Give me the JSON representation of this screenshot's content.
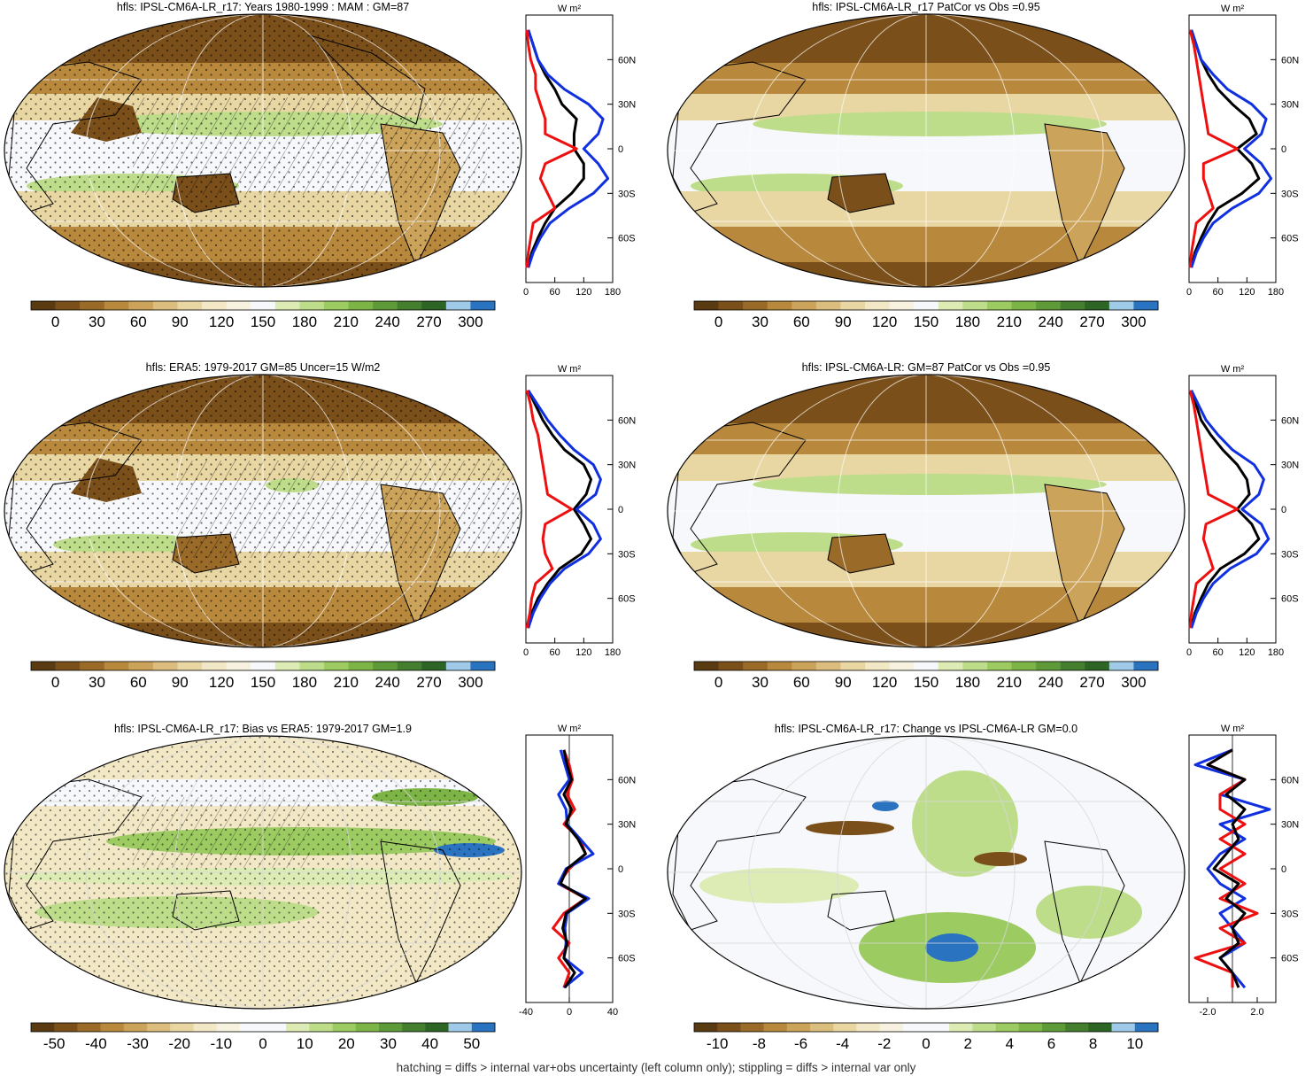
{
  "figure": {
    "footnote": "hatching = diffs > internal var+obs uncertainty (left column only); stippling = diffs > internal var only"
  },
  "colors": {
    "mean": [
      "#5a3a10",
      "#7a4f1a",
      "#9a6a28",
      "#b8883c",
      "#cca35a",
      "#dbbd7e",
      "#e8d6a3",
      "#f2e8c6",
      "#f7f2e0",
      "#f7f8fb",
      "#dcecb4",
      "#bedd8a",
      "#9ccb62",
      "#7db446",
      "#5e9a38",
      "#437f2e",
      "#2d6624",
      "#9fcbe8",
      "#2a73c0"
    ],
    "diff": [
      "#5a3a10",
      "#7a4f1a",
      "#9a6a28",
      "#b8883c",
      "#cca35a",
      "#dbbd7e",
      "#e8d6a3",
      "#f2e8c6",
      "#f7f2e0",
      "#f7f8fb",
      "#f7f8fb",
      "#dcecb4",
      "#bedd8a",
      "#9ccb62",
      "#7db446",
      "#5e9a38",
      "#437f2e",
      "#2d6624",
      "#9fcbe8",
      "#2a73c0"
    ],
    "model_line": "#000000",
    "obs_line": "#1030e0",
    "diff_line": "#ee1010"
  },
  "chart_data": [
    {
      "type": "heatmap",
      "title": "hfls: IPSL-CM6A-LR_r17: Years 1980-1999 : MAM : GM=87",
      "colorbar": {
        "labels": [
          "0",
          "30",
          "60",
          "90",
          "120",
          "150",
          "180",
          "210",
          "240",
          "270",
          "300"
        ],
        "palette": "mean"
      },
      "profile": {
        "type": "line",
        "units": "W m²",
        "x_ticks": [
          "0",
          "60",
          "120",
          "180"
        ],
        "xlim": [
          0,
          180
        ],
        "y_ticks": [
          "60N",
          "30N",
          "0",
          "30S",
          "60S"
        ],
        "lat": [
          80,
          70,
          60,
          50,
          40,
          30,
          20,
          10,
          0,
          -10,
          -20,
          -30,
          -40,
          -50,
          -60,
          -70,
          -80
        ],
        "series": [
          {
            "color": "model_line",
            "values": [
              5,
              15,
              25,
              40,
              60,
              75,
              105,
              100,
              100,
              120,
              120,
              95,
              60,
              40,
              25,
              12,
              5
            ]
          },
          {
            "color": "obs_line",
            "values": [
              5,
              15,
              25,
              45,
              80,
              130,
              160,
              150,
              120,
              150,
              170,
              140,
              90,
              50,
              30,
              15,
              5
            ]
          },
          {
            "color": "diff_line",
            "values": [
              2,
              5,
              10,
              20,
              20,
              30,
              40,
              40,
              105,
              40,
              30,
              45,
              60,
              15,
              10,
              5,
              2
            ]
          }
        ]
      }
    },
    {
      "type": "heatmap",
      "title": "hfls: IPSL-CM6A-LR_r17 PatCor vs Obs =0.95",
      "colorbar": {
        "labels": [
          "0",
          "30",
          "60",
          "90",
          "120",
          "150",
          "180",
          "210",
          "240",
          "270",
          "300"
        ],
        "palette": "mean"
      },
      "profile": {
        "type": "line",
        "units": "W m²",
        "x_ticks": [
          "0",
          "60",
          "120",
          "180"
        ],
        "xlim": [
          0,
          180
        ],
        "y_ticks": [
          "60N",
          "30N",
          "0",
          "30S",
          "60S"
        ],
        "lat": [
          80,
          70,
          60,
          50,
          40,
          30,
          20,
          10,
          0,
          -10,
          -20,
          -30,
          -40,
          -50,
          -60,
          -70,
          -80
        ],
        "series": [
          {
            "color": "model_line",
            "values": [
              5,
              15,
              25,
              40,
              60,
              90,
              125,
              140,
              100,
              130,
              145,
              110,
              60,
              40,
              25,
              12,
              5
            ]
          },
          {
            "color": "obs_line",
            "values": [
              5,
              15,
              25,
              50,
              80,
              130,
              160,
              150,
              115,
              150,
              170,
              145,
              90,
              50,
              30,
              15,
              5
            ]
          },
          {
            "color": "diff_line",
            "values": [
              2,
              10,
              15,
              20,
              25,
              30,
              35,
              40,
              100,
              30,
              30,
              40,
              50,
              15,
              10,
              5,
              2
            ]
          }
        ]
      }
    },
    {
      "type": "heatmap",
      "title": "hfls: ERA5: 1979-2017 GM=85 Uncer=15 W/m2",
      "colorbar": {
        "labels": [
          "0",
          "30",
          "60",
          "90",
          "120",
          "150",
          "180",
          "210",
          "240",
          "270",
          "300"
        ],
        "palette": "mean"
      },
      "profile": {
        "type": "line",
        "units": "W m²",
        "x_ticks": [
          "0",
          "60",
          "120",
          "180"
        ],
        "xlim": [
          0,
          180
        ],
        "y_ticks": [
          "60N",
          "30N",
          "0",
          "30S",
          "60S"
        ],
        "lat": [
          80,
          70,
          60,
          50,
          40,
          30,
          20,
          10,
          0,
          -10,
          -20,
          -30,
          -40,
          -50,
          -60,
          -70,
          -80
        ],
        "series": [
          {
            "color": "model_line",
            "values": [
              5,
              20,
              35,
              55,
              80,
              120,
              135,
              125,
              100,
              120,
              135,
              115,
              70,
              45,
              25,
              12,
              5
            ]
          },
          {
            "color": "obs_line",
            "values": [
              5,
              25,
              45,
              70,
              100,
              140,
              155,
              145,
              105,
              140,
              155,
              130,
              80,
              50,
              30,
              15,
              5
            ]
          },
          {
            "color": "diff_line",
            "values": [
              2,
              10,
              15,
              25,
              30,
              35,
              40,
              45,
              95,
              40,
              35,
              40,
              55,
              20,
              12,
              8,
              2
            ]
          }
        ]
      }
    },
    {
      "type": "heatmap",
      "title": "hfls: IPSL-CM6A-LR: GM=87 PatCor vs Obs =0.95",
      "colorbar": {
        "labels": [
          "0",
          "30",
          "60",
          "90",
          "120",
          "150",
          "180",
          "210",
          "240",
          "270",
          "300"
        ],
        "palette": "mean"
      },
      "profile": {
        "type": "line",
        "units": "W m²",
        "x_ticks": [
          "0",
          "60",
          "120",
          "180"
        ],
        "xlim": [
          0,
          180
        ],
        "y_ticks": [
          "60N",
          "30N",
          "0",
          "30S",
          "60S"
        ],
        "lat": [
          80,
          70,
          60,
          50,
          40,
          30,
          20,
          10,
          0,
          -10,
          -20,
          -30,
          -40,
          -50,
          -60,
          -70,
          -80
        ],
        "series": [
          {
            "color": "model_line",
            "values": [
              5,
              15,
              25,
              45,
              70,
              100,
              120,
              125,
              100,
              130,
              145,
              115,
              65,
              40,
              25,
              12,
              5
            ]
          },
          {
            "color": "obs_line",
            "values": [
              5,
              20,
              35,
              60,
              90,
              135,
              155,
              145,
              110,
              150,
              165,
              140,
              85,
              50,
              30,
              15,
              5
            ]
          },
          {
            "color": "diff_line",
            "values": [
              2,
              10,
              15,
              20,
              25,
              30,
              35,
              40,
              100,
              35,
              30,
              40,
              50,
              15,
              10,
              5,
              2
            ]
          }
        ]
      }
    },
    {
      "type": "heatmap",
      "title": "hfls: IPSL-CM6A-LR_r17: Bias vs ERA5: 1979-2017 GM=1.9",
      "colorbar": {
        "labels": [
          "-50",
          "-40",
          "-30",
          "-20",
          "-10",
          "0",
          "10",
          "20",
          "30",
          "40",
          "50"
        ],
        "palette": "diff"
      },
      "profile": {
        "type": "line",
        "units": "W m²",
        "x_ticks": [
          "-40",
          "0",
          "40"
        ],
        "xlim": [
          -40,
          40
        ],
        "y_ticks": [
          "60N",
          "30N",
          "0",
          "30S",
          "60S"
        ],
        "lat": [
          80,
          70,
          60,
          50,
          40,
          30,
          20,
          10,
          0,
          -10,
          -20,
          -30,
          -40,
          -50,
          -60,
          -70,
          -80
        ],
        "series": [
          {
            "color": "diff_line",
            "values": [
              -5,
              0,
              3,
              -2,
              5,
              -5,
              10,
              15,
              0,
              -10,
              15,
              -5,
              -15,
              0,
              -10,
              0,
              -5
            ]
          },
          {
            "color": "obs_line",
            "values": [
              -8,
              -4,
              0,
              -10,
              -3,
              -2,
              10,
              22,
              -3,
              -10,
              18,
              -2,
              -4,
              -3,
              -5,
              12,
              -5
            ]
          },
          {
            "color": "model_line",
            "values": [
              -5,
              -2,
              2,
              -5,
              2,
              -3,
              8,
              15,
              -2,
              -8,
              15,
              -3,
              -6,
              -2,
              -5,
              5,
              -4
            ]
          }
        ]
      }
    },
    {
      "type": "heatmap",
      "title": "hfls: IPSL-CM6A-LR_r17: Change vs IPSL-CM6A-LR GM=0.0",
      "colorbar": {
        "labels": [
          "-10",
          "-8",
          "-6",
          "-4",
          "-2",
          "0",
          "2",
          "4",
          "6",
          "8",
          "10"
        ],
        "palette": "diff"
      },
      "profile": {
        "type": "line",
        "units": "W m²",
        "x_ticks": [
          "-2.0",
          "2.0"
        ],
        "xlim": [
          -3.5,
          3.5
        ],
        "y_ticks": [
          "60N",
          "30N",
          "0",
          "30S",
          "60S"
        ],
        "lat": [
          80,
          70,
          60,
          50,
          40,
          30,
          20,
          10,
          0,
          -10,
          -20,
          -30,
          -40,
          -50,
          -60,
          -70,
          -80
        ],
        "series": [
          {
            "color": "obs_line",
            "values": [
              0,
              -3,
              1,
              -1,
              3,
              -1,
              1,
              -1,
              -2,
              -1,
              1,
              -1,
              0,
              1,
              -1,
              0,
              1
            ]
          },
          {
            "color": "diff_line",
            "values": [
              0,
              -2,
              1,
              -1,
              -1,
              1,
              -1,
              1,
              -1,
              1,
              -1,
              2,
              -1,
              1,
              -3,
              0,
              0
            ]
          },
          {
            "color": "model_line",
            "values": [
              0,
              -2,
              1,
              -0.5,
              1,
              0,
              0.5,
              -0.5,
              -1.5,
              0.5,
              -0.5,
              1,
              0,
              0.5,
              -1,
              0,
              0.5
            ]
          }
        ]
      }
    }
  ]
}
